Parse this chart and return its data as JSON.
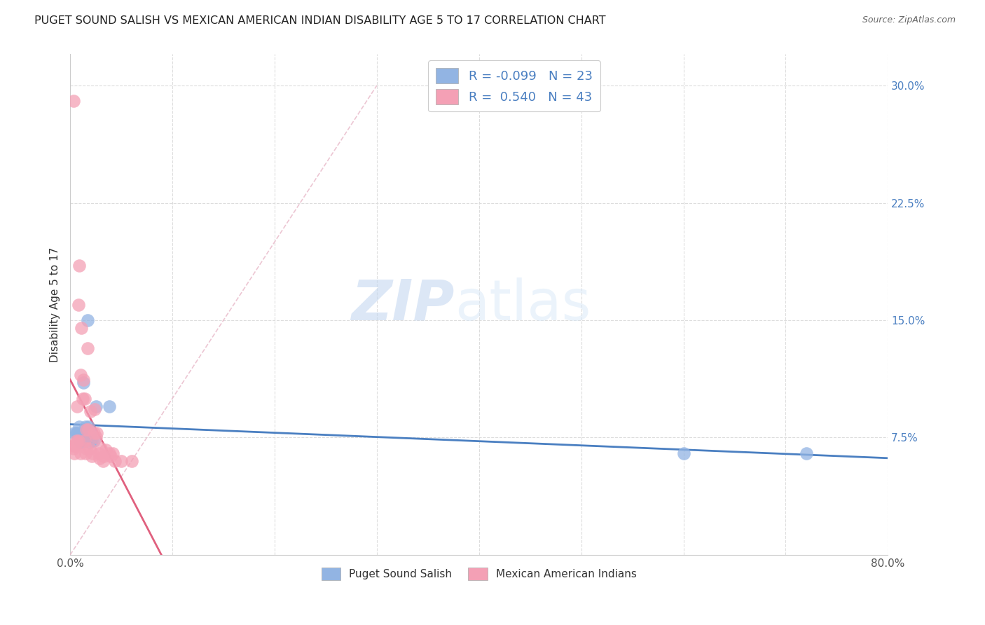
{
  "title": "PUGET SOUND SALISH VS MEXICAN AMERICAN INDIAN DISABILITY AGE 5 TO 17 CORRELATION CHART",
  "source": "Source: ZipAtlas.com",
  "ylabel": "Disability Age 5 to 17",
  "watermark_zip": "ZIP",
  "watermark_atlas": "atlas",
  "xlim": [
    0.0,
    0.8
  ],
  "ylim": [
    0.0,
    0.32
  ],
  "xticks": [
    0.0,
    0.1,
    0.2,
    0.3,
    0.4,
    0.5,
    0.6,
    0.7,
    0.8
  ],
  "xticklabels": [
    "0.0%",
    "",
    "",
    "",
    "",
    "",
    "",
    "",
    "80.0%"
  ],
  "yticks": [
    0.075,
    0.15,
    0.225,
    0.3
  ],
  "yticklabels": [
    "7.5%",
    "15.0%",
    "22.5%",
    "30.0%"
  ],
  "grid_color": "#dddddd",
  "blue_color": "#92b4e3",
  "pink_color": "#f4a0b5",
  "blue_line_color": "#4a7fc1",
  "pink_line_color": "#e0607e",
  "diag_line_color": "#e8b8c8",
  "legend_R1": "-0.099",
  "legend_N1": "23",
  "legend_R2": "0.540",
  "legend_N2": "43",
  "legend_label1": "Puget Sound Salish",
  "legend_label2": "Mexican American Indians",
  "blue_scatter_x": [
    0.004,
    0.006,
    0.007,
    0.008,
    0.009,
    0.01,
    0.01,
    0.011,
    0.012,
    0.013,
    0.014,
    0.015,
    0.016,
    0.017,
    0.018,
    0.019,
    0.02,
    0.021,
    0.023,
    0.025,
    0.038,
    0.6,
    0.72
  ],
  "blue_scatter_y": [
    0.078,
    0.078,
    0.078,
    0.076,
    0.082,
    0.072,
    0.075,
    0.075,
    0.073,
    0.11,
    0.073,
    0.082,
    0.076,
    0.15,
    0.082,
    0.072,
    0.078,
    0.073,
    0.073,
    0.095,
    0.095,
    0.065,
    0.065
  ],
  "pink_scatter_x": [
    0.002,
    0.003,
    0.004,
    0.005,
    0.006,
    0.007,
    0.007,
    0.008,
    0.008,
    0.009,
    0.01,
    0.01,
    0.011,
    0.012,
    0.013,
    0.014,
    0.014,
    0.015,
    0.016,
    0.016,
    0.017,
    0.018,
    0.019,
    0.02,
    0.021,
    0.022,
    0.023,
    0.024,
    0.025,
    0.026,
    0.028,
    0.029,
    0.03,
    0.032,
    0.033,
    0.035,
    0.038,
    0.04,
    0.042,
    0.044,
    0.05,
    0.06,
    0.003
  ],
  "pink_scatter_y": [
    0.07,
    0.068,
    0.065,
    0.07,
    0.073,
    0.095,
    0.072,
    0.16,
    0.073,
    0.185,
    0.115,
    0.065,
    0.145,
    0.1,
    0.112,
    0.1,
    0.073,
    0.065,
    0.068,
    0.08,
    0.132,
    0.08,
    0.068,
    0.092,
    0.063,
    0.065,
    0.078,
    0.093,
    0.075,
    0.078,
    0.065,
    0.062,
    0.068,
    0.06,
    0.063,
    0.067,
    0.065,
    0.063,
    0.065,
    0.06,
    0.06,
    0.06,
    0.29
  ]
}
